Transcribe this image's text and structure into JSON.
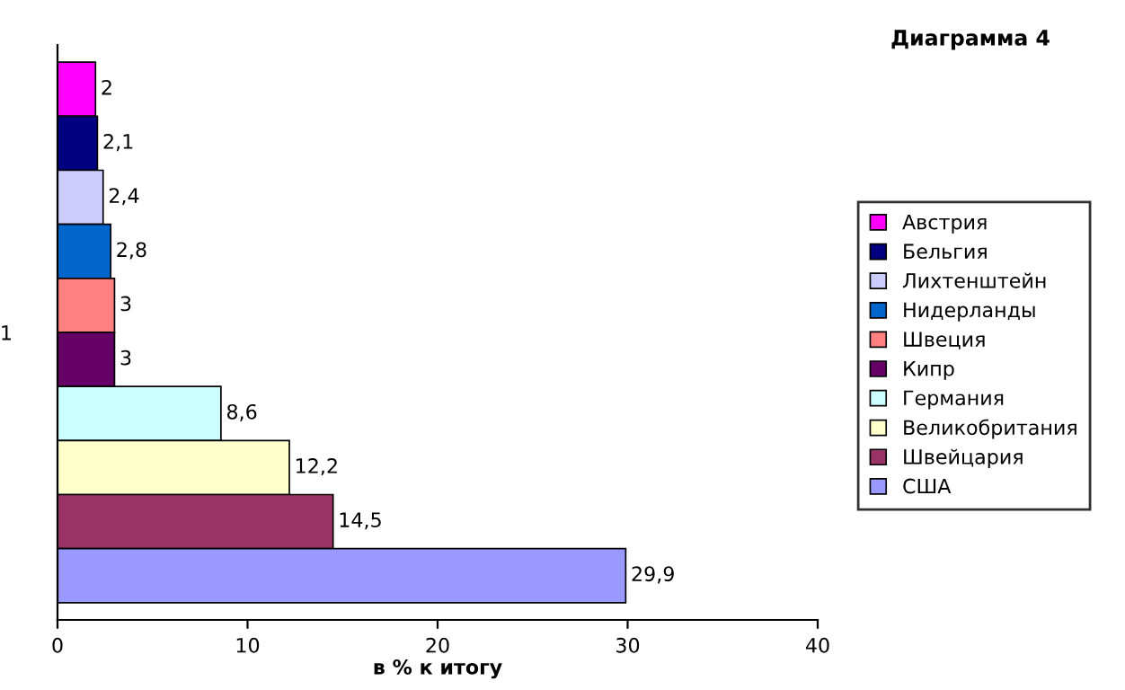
{
  "chart_data": {
    "type": "bar",
    "orientation": "horizontal",
    "title": "Диаграмма 4",
    "xlabel": "в % к итогу",
    "categories": [
      "1"
    ],
    "series": [
      {
        "name": "Австрия",
        "color": "#ff00ff",
        "values": [
          2
        ],
        "value_labels": [
          "2"
        ]
      },
      {
        "name": "Бельгия",
        "color": "#000080",
        "values": [
          2.1
        ],
        "value_labels": [
          "2,1"
        ]
      },
      {
        "name": "Лихтенштейн",
        "color": "#ccccff",
        "values": [
          2.4
        ],
        "value_labels": [
          "2,4"
        ]
      },
      {
        "name": "Нидерланды",
        "color": "#0066cc",
        "values": [
          2.8
        ],
        "value_labels": [
          "2,8"
        ]
      },
      {
        "name": "Швеция",
        "color": "#ff8080",
        "values": [
          3
        ],
        "value_labels": [
          "3"
        ]
      },
      {
        "name": "Кипр",
        "color": "#660066",
        "values": [
          3
        ],
        "value_labels": [
          "3"
        ]
      },
      {
        "name": "Германия",
        "color": "#ccffff",
        "values": [
          8.6
        ],
        "value_labels": [
          "8,6"
        ]
      },
      {
        "name": "Великобритания",
        "color": "#ffffcc",
        "values": [
          12.2
        ],
        "value_labels": [
          "12,2"
        ]
      },
      {
        "name": "Швейцария",
        "color": "#993366",
        "values": [
          14.5
        ],
        "value_labels": [
          "14,5"
        ]
      },
      {
        "name": "США",
        "color": "#9999ff",
        "values": [
          29.9
        ],
        "value_labels": [
          "29,9"
        ]
      }
    ],
    "xlim": [
      0,
      40
    ],
    "xticks": [
      0,
      10,
      20,
      30,
      40
    ],
    "grid": false,
    "legend": "right"
  }
}
